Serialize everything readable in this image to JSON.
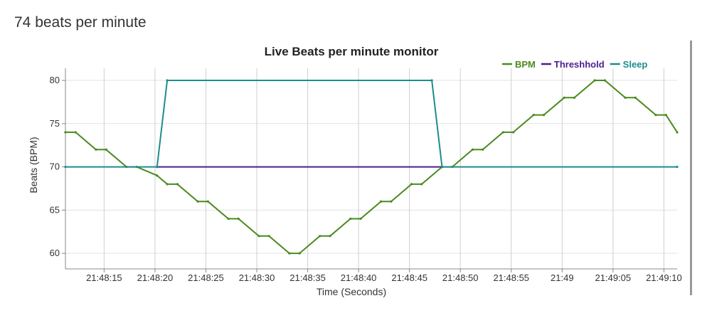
{
  "heading": "74 beats per minute",
  "chart_data": {
    "type": "line",
    "title": "Live Beats per minute monitor",
    "xlabel": "Time (Seconds)",
    "ylabel": "Beats (BPM)",
    "x_tick_labels": [
      "21:48:15",
      "21:48:20",
      "21:48:25",
      "21:48:30",
      "21:48:35",
      "21:48:40",
      "21:48:45",
      "21:48:50",
      "21:48:55",
      "21:49",
      "21:49:05",
      "21:49:10"
    ],
    "x_tick_seconds": [
      15,
      20,
      25,
      30,
      35,
      40,
      45,
      50,
      55,
      60,
      65,
      70
    ],
    "xlim": [
      11.2,
      71.3
    ],
    "ylim": [
      58.2,
      81.4
    ],
    "yticks": [
      60,
      65,
      70,
      75,
      80
    ],
    "grid": true,
    "legend_position": "top-right",
    "series": [
      {
        "name": "BPM",
        "color": "#4a8a1e",
        "x": [
          11.2,
          12.2,
          14.2,
          15.2,
          17.2,
          18.2,
          20.2,
          21.2,
          22.2,
          24.2,
          25.2,
          27.2,
          28.2,
          30.2,
          31.2,
          33.2,
          34.2,
          36.2,
          37.2,
          39.2,
          40.2,
          42.2,
          43.2,
          45.2,
          46.2,
          48.2,
          49.2,
          51.2,
          52.2,
          54.2,
          55.2,
          57.2,
          58.2,
          60.2,
          61.2,
          63.2,
          64.2,
          66.2,
          67.2,
          69.2,
          70.2,
          71.3
        ],
        "y": [
          74,
          74,
          72,
          72,
          70,
          70,
          69,
          68,
          68,
          66,
          66,
          64,
          64,
          62,
          62,
          60,
          60,
          62,
          62,
          64,
          64,
          66,
          66,
          68,
          68,
          70,
          70,
          72,
          72,
          74,
          74,
          76,
          76,
          78,
          78,
          80,
          80,
          78,
          78,
          76,
          76,
          74
        ]
      },
      {
        "name": "Threshhold",
        "color": "#4b1e8c",
        "x": [
          20.2,
          48.2
        ],
        "y": [
          70,
          70
        ]
      },
      {
        "name": "Sleep",
        "color": "#1f8c8c",
        "x": [
          11.2,
          20.2,
          21.2,
          47.2,
          48.2,
          71.3
        ],
        "y": [
          70,
          70,
          80,
          80,
          70,
          70
        ]
      }
    ]
  }
}
